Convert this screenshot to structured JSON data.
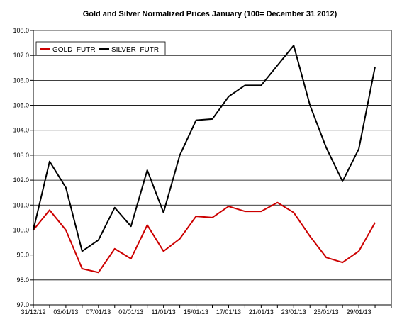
{
  "chart_data": {
    "type": "line",
    "title": "Gold and Silver Normalized Prices January (100= December 31 2012)",
    "xlabel": "",
    "ylabel": "",
    "ylim": [
      97.0,
      108.0
    ],
    "yticks": [
      97.0,
      98.0,
      99.0,
      100.0,
      101.0,
      102.0,
      103.0,
      104.0,
      105.0,
      106.0,
      107.0,
      108.0
    ],
    "ytick_labels": [
      "97.0",
      "98.0",
      "99.0",
      "100.0",
      "101.0",
      "102.0",
      "103.0",
      "104.0",
      "105.0",
      "106.0",
      "107.0",
      "108.0"
    ],
    "x_tick_labels": [
      "31/12/12",
      "03/01/13",
      "07/01/13",
      "09/01/13",
      "11/01/13",
      "15/01/13",
      "17/01/13",
      "21/01/13",
      "23/01/13",
      "25/01/13",
      "29/01/13"
    ],
    "grid": true,
    "legend_position": "top-left",
    "series": [
      {
        "name": "GOLD  FUTR",
        "color": "#cc0000",
        "values": [
          100.0,
          100.8,
          100.0,
          98.45,
          98.3,
          99.25,
          98.85,
          100.2,
          99.15,
          99.65,
          100.55,
          100.5,
          100.95,
          100.75,
          100.75,
          101.1,
          100.7,
          99.75,
          98.9,
          98.7,
          99.15,
          100.3
        ]
      },
      {
        "name": "SILVER  FUTR",
        "color": "#000000",
        "values": [
          100.0,
          102.75,
          101.7,
          99.15,
          99.6,
          100.9,
          100.15,
          102.4,
          100.7,
          103.0,
          104.4,
          104.45,
          105.35,
          105.8,
          105.8,
          106.6,
          107.4,
          105.0,
          103.3,
          101.95,
          103.25,
          106.55
        ]
      }
    ]
  }
}
